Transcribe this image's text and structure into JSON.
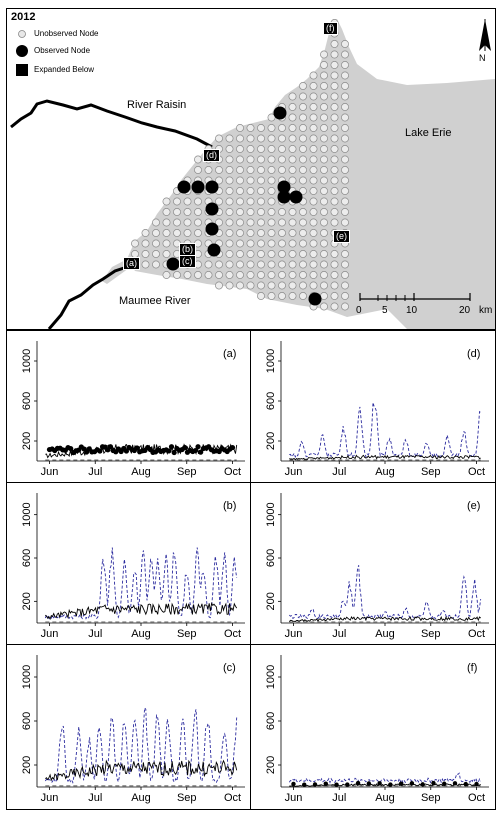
{
  "map": {
    "year": "2012",
    "legend": {
      "unobserved": "Unobserved Node",
      "observed": "Observed Node",
      "expanded": "Expanded Below"
    },
    "north_label": "N",
    "labels": {
      "river_raisin": "River Raisin",
      "lake_erie": "Lake Erie",
      "maumee_river": "Maumee River"
    },
    "node_tags": [
      "(a)",
      "(b)",
      "(c)",
      "(d)",
      "(e)",
      "(f)"
    ],
    "scale": {
      "ticks": [
        "0",
        "5",
        "10",
        "20"
      ],
      "unit": "km"
    }
  },
  "chart_data": [
    {
      "id": "a",
      "type": "line",
      "panel_label": "(a)",
      "x_ticks": [
        "Jun",
        "Jul",
        "Aug",
        "Sep",
        "Oct"
      ],
      "y_ticks": [
        "200",
        "600",
        "1000"
      ],
      "ylim": [
        0,
        1200
      ],
      "observed_level": 120,
      "solid_level": 120,
      "dashed_peaks": []
    },
    {
      "id": "b",
      "type": "line",
      "panel_label": "(b)",
      "x_ticks": [
        "Jun",
        "Jul",
        "Aug",
        "Sep",
        "Oct"
      ],
      "y_ticks": [
        "200",
        "600",
        "1000"
      ],
      "ylim": [
        0,
        1200
      ],
      "solid_level": 130,
      "dashed_peaks": [
        [
          0.32,
          700
        ],
        [
          0.36,
          720
        ],
        [
          0.42,
          650
        ],
        [
          0.47,
          560
        ],
        [
          0.51,
          740
        ],
        [
          0.55,
          730
        ],
        [
          0.58,
          690
        ],
        [
          0.62,
          640
        ],
        [
          0.66,
          730
        ],
        [
          0.72,
          560
        ],
        [
          0.77,
          740
        ],
        [
          0.8,
          600
        ],
        [
          0.86,
          740
        ],
        [
          0.9,
          700
        ],
        [
          0.95,
          640
        ]
      ]
    },
    {
      "id": "c",
      "type": "line",
      "panel_label": "(c)",
      "x_ticks": [
        "Jun",
        "Jul",
        "Aug",
        "Sep",
        "Oct"
      ],
      "y_ticks": [
        "200",
        "600",
        "1000"
      ],
      "ylim": [
        0,
        1200
      ],
      "solid_level": 170,
      "dashed_peaks": [
        [
          0.12,
          680
        ],
        [
          0.2,
          560
        ],
        [
          0.25,
          470
        ],
        [
          0.3,
          690
        ],
        [
          0.36,
          740
        ],
        [
          0.42,
          760
        ],
        [
          0.47,
          770
        ],
        [
          0.52,
          740
        ],
        [
          0.58,
          730
        ],
        [
          0.63,
          680
        ],
        [
          0.7,
          730
        ],
        [
          0.76,
          800
        ],
        [
          0.82,
          740
        ],
        [
          0.9,
          620
        ],
        [
          0.96,
          650
        ]
      ]
    },
    {
      "id": "d",
      "type": "line",
      "panel_label": "(d)",
      "x_ticks": [
        "Jun",
        "Jul",
        "Aug",
        "Sep",
        "Oct"
      ],
      "y_ticks": [
        "200",
        "600",
        "1000"
      ],
      "ylim": [
        0,
        1200
      ],
      "solid_level": 40,
      "dashed_peaks": [
        [
          0.1,
          220
        ],
        [
          0.2,
          310
        ],
        [
          0.3,
          380
        ],
        [
          0.38,
          560
        ],
        [
          0.45,
          720
        ],
        [
          0.52,
          250
        ],
        [
          0.6,
          240
        ],
        [
          0.7,
          200
        ],
        [
          0.8,
          280
        ],
        [
          0.88,
          330
        ],
        [
          0.96,
          570
        ]
      ]
    },
    {
      "id": "e",
      "type": "line",
      "panel_label": "(e)",
      "x_ticks": [
        "Jun",
        "Jul",
        "Aug",
        "Sep",
        "Oct"
      ],
      "y_ticks": [
        "200",
        "600",
        "1000"
      ],
      "ylim": [
        0,
        1200
      ],
      "solid_level": 40,
      "dashed_peaks": [
        [
          0.15,
          150
        ],
        [
          0.3,
          240
        ],
        [
          0.33,
          420
        ],
        [
          0.37,
          560
        ],
        [
          0.5,
          120
        ],
        [
          0.6,
          160
        ],
        [
          0.7,
          200
        ],
        [
          0.78,
          150
        ],
        [
          0.88,
          480
        ],
        [
          0.93,
          410
        ],
        [
          0.97,
          380
        ]
      ]
    },
    {
      "id": "f",
      "type": "line",
      "panel_label": "(f)",
      "x_ticks": [
        "Jun",
        "Jul",
        "Aug",
        "Sep",
        "Oct"
      ],
      "y_ticks": [
        "200",
        "600",
        "1000"
      ],
      "ylim": [
        0,
        1200
      ],
      "observed_level": 30,
      "solid_level": 20,
      "dashed_peaks": [
        [
          0.85,
          150
        ]
      ]
    }
  ]
}
